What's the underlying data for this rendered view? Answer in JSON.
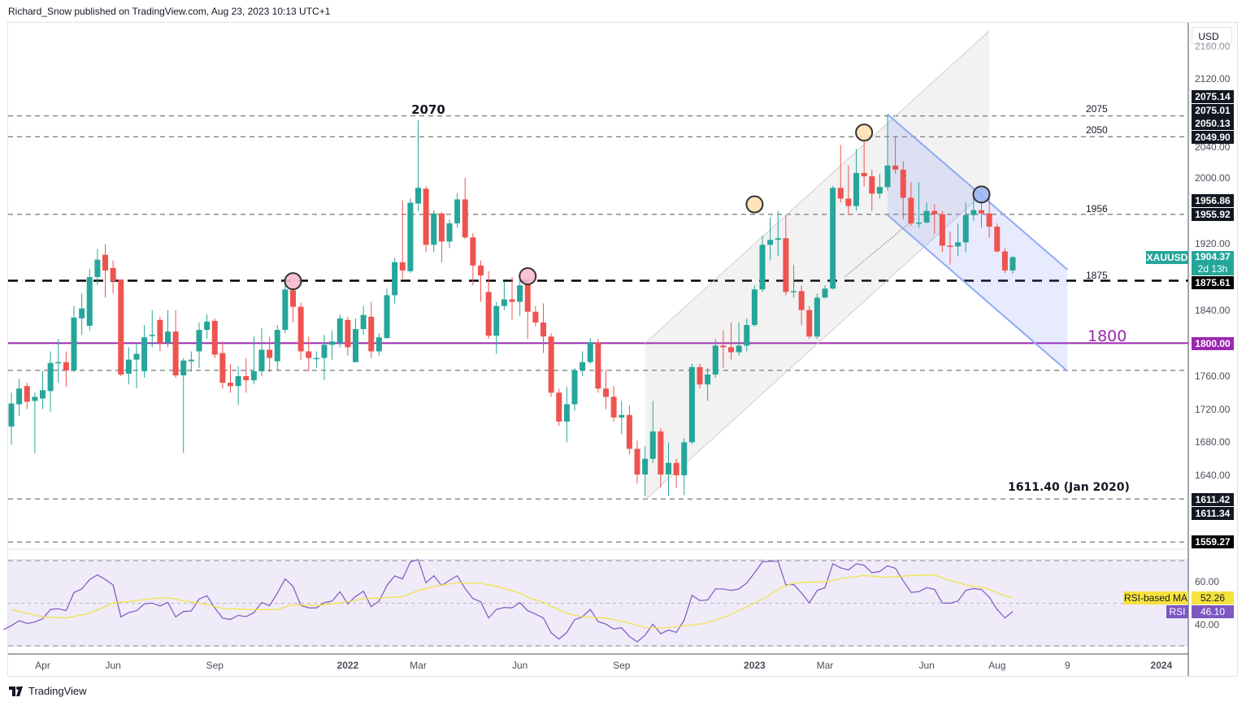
{
  "header": {
    "text": "Richard_Snow published on TradingView.com, Aug 23, 2023 10:13 UTC+1"
  },
  "footer": {
    "logo_text": "TradingView"
  },
  "currency_button": "USD",
  "colors": {
    "up": "#26a69a",
    "down": "#ef5350",
    "purple": "#9c27b0",
    "rsi": "#7e57c2",
    "rsi_ma": "#f5e23d",
    "badge": "#131722"
  },
  "price_axis": {
    "ticks": [
      "2160.00",
      "2120.00",
      "2040.00",
      "2000.00",
      "1920.00",
      "1840.00",
      "1760.00",
      "1720.00",
      "1680.00",
      "1640.00"
    ]
  },
  "badges": {
    "b2075_14": "2075.14",
    "b2075_01": "2075.01",
    "b2050_13": "2050.13",
    "b2049_90": "2049.90",
    "b1956_86": "1956.86",
    "b1955_92": "1955.92",
    "symbol": "XAUUSD",
    "last_price": "1904.37",
    "countdown": "2d 13h",
    "b1875_61": "1875.61",
    "b1800": "1800.00",
    "b1611_42": "1611.42",
    "b1611_34": "1611.34",
    "b1559_27": "1559.27",
    "rsi_ma_label": "RSI-based MA",
    "rsi_ma_value": "52.26",
    "rsi_label": "RSI",
    "rsi_value": "46.10"
  },
  "annotations": {
    "peak": "2070",
    "l2075": "2075",
    "l2050": "2050",
    "l1956": "1956",
    "l1875": "1875",
    "l1800": "1800",
    "l1611": "1611.40 (Jan 2020)"
  },
  "rsi_axis": {
    "ticks": [
      "60.00",
      "40.00"
    ]
  },
  "time_axis": [
    {
      "label": "Apr",
      "week": 4
    },
    {
      "label": "Jun",
      "week": 13
    },
    {
      "label": "Sep",
      "week": 26
    },
    {
      "label": "2022",
      "week": 43,
      "bold": true
    },
    {
      "label": "Mar",
      "week": 52
    },
    {
      "label": "Jun",
      "week": 65
    },
    {
      "label": "Sep",
      "week": 78
    },
    {
      "label": "2023",
      "week": 95,
      "bold": true
    },
    {
      "label": "Mar",
      "week": 104
    },
    {
      "label": "Jun",
      "week": 117
    },
    {
      "label": "Aug",
      "week": 126
    },
    {
      "label": "9",
      "week": 135
    },
    {
      "label": "2024",
      "week": 147
    }
  ],
  "chart_data": {
    "type": "candlestick",
    "symbol": "XAUUSD",
    "interval": "1W",
    "ylim": [
      1540,
      2180
    ],
    "levels": [
      {
        "price": 2075.01,
        "style": "dashed"
      },
      {
        "price": 2049.9,
        "style": "dashed"
      },
      {
        "price": 1955.92,
        "style": "dashed"
      },
      {
        "price": 1875.61,
        "style": "thick-dashed"
      },
      {
        "price": 1800.0,
        "style": "solid-purple"
      },
      {
        "price": 1767,
        "style": "dashed"
      },
      {
        "price": 1611.42,
        "style": "dashed"
      },
      {
        "price": 1559.27,
        "style": "dashed"
      }
    ],
    "ohlc": [
      [
        1699,
        1740,
        1677,
        1727
      ],
      [
        1726,
        1757,
        1712,
        1745
      ],
      [
        1748,
        1752,
        1720,
        1729
      ],
      [
        1730,
        1740,
        1667,
        1735
      ],
      [
        1733,
        1766,
        1720,
        1743
      ],
      [
        1742,
        1790,
        1717,
        1776
      ],
      [
        1776,
        1805,
        1752,
        1777
      ],
      [
        1777,
        1790,
        1747,
        1767
      ],
      [
        1767,
        1845,
        1765,
        1831
      ],
      [
        1830,
        1860,
        1810,
        1842
      ],
      [
        1821,
        1890,
        1815,
        1880
      ],
      [
        1880,
        1914,
        1870,
        1901
      ],
      [
        1907,
        1920,
        1855,
        1888
      ],
      [
        1891,
        1900,
        1860,
        1875
      ],
      [
        1877,
        1877,
        1760,
        1762
      ],
      [
        1763,
        1795,
        1750,
        1780
      ],
      [
        1780,
        1800,
        1745,
        1787
      ],
      [
        1766,
        1822,
        1758,
        1807
      ],
      [
        1810,
        1840,
        1795,
        1810
      ],
      [
        1828,
        1832,
        1790,
        1800
      ],
      [
        1800,
        1840,
        1795,
        1814
      ],
      [
        1814,
        1840,
        1758,
        1761
      ],
      [
        1761,
        1782,
        1667,
        1779
      ],
      [
        1778,
        1790,
        1765,
        1780
      ],
      [
        1790,
        1825,
        1770,
        1816
      ],
      [
        1816,
        1835,
        1805,
        1826
      ],
      [
        1827,
        1830,
        1782,
        1786
      ],
      [
        1788,
        1802,
        1745,
        1752
      ],
      [
        1752,
        1775,
        1740,
        1748
      ],
      [
        1748,
        1772,
        1725,
        1760
      ],
      [
        1760,
        1782,
        1740,
        1755
      ],
      [
        1755,
        1808,
        1750,
        1766
      ],
      [
        1766,
        1818,
        1760,
        1792
      ],
      [
        1792,
        1808,
        1765,
        1782
      ],
      [
        1778,
        1822,
        1767,
        1816
      ],
      [
        1816,
        1870,
        1812,
        1865
      ],
      [
        1864,
        1877,
        1825,
        1844
      ],
      [
        1844,
        1849,
        1780,
        1790
      ],
      [
        1790,
        1808,
        1766,
        1782
      ],
      [
        1782,
        1790,
        1770,
        1782
      ],
      [
        1782,
        1810,
        1755,
        1798
      ],
      [
        1798,
        1815,
        1780,
        1802
      ],
      [
        1800,
        1835,
        1795,
        1830
      ],
      [
        1828,
        1832,
        1785,
        1795
      ],
      [
        1777,
        1830,
        1777,
        1817
      ],
      [
        1817,
        1845,
        1810,
        1834
      ],
      [
        1832,
        1850,
        1782,
        1790
      ],
      [
        1790,
        1812,
        1785,
        1807
      ],
      [
        1806,
        1866,
        1806,
        1858
      ],
      [
        1858,
        1903,
        1848,
        1898
      ],
      [
        1898,
        1973,
        1878,
        1888
      ],
      [
        1887,
        1975,
        1885,
        1970
      ],
      [
        1969,
        2070,
        1960,
        1988
      ],
      [
        1987,
        1990,
        1910,
        1919
      ],
      [
        1919,
        1961,
        1910,
        1957
      ],
      [
        1957,
        1959,
        1898,
        1923
      ],
      [
        1923,
        1950,
        1915,
        1945
      ],
      [
        1945,
        1982,
        1940,
        1974
      ],
      [
        1974,
        2000,
        1926,
        1928
      ],
      [
        1928,
        1933,
        1870,
        1894
      ],
      [
        1894,
        1900,
        1850,
        1882
      ],
      [
        1862,
        1887,
        1805,
        1809
      ],
      [
        1809,
        1850,
        1787,
        1845
      ],
      [
        1845,
        1875,
        1840,
        1853
      ],
      [
        1853,
        1880,
        1828,
        1850
      ],
      [
        1850,
        1877,
        1833,
        1870
      ],
      [
        1873,
        1880,
        1805,
        1838
      ],
      [
        1838,
        1845,
        1820,
        1825
      ],
      [
        1825,
        1848,
        1788,
        1808
      ],
      [
        1808,
        1812,
        1735,
        1740
      ],
      [
        1740,
        1745,
        1700,
        1705
      ],
      [
        1705,
        1747,
        1680,
        1726
      ],
      [
        1726,
        1770,
        1718,
        1767
      ],
      [
        1767,
        1790,
        1760,
        1777
      ],
      [
        1777,
        1806,
        1775,
        1801
      ],
      [
        1801,
        1805,
        1740,
        1745
      ],
      [
        1745,
        1768,
        1720,
        1735
      ],
      [
        1735,
        1748,
        1705,
        1710
      ],
      [
        1710,
        1730,
        1690,
        1713
      ],
      [
        1713,
        1725,
        1665,
        1672
      ],
      [
        1672,
        1682,
        1630,
        1641
      ],
      [
        1641,
        1675,
        1615,
        1660
      ],
      [
        1660,
        1730,
        1655,
        1693
      ],
      [
        1693,
        1697,
        1625,
        1641
      ],
      [
        1641,
        1680,
        1615,
        1655
      ],
      [
        1655,
        1660,
        1625,
        1640
      ],
      [
        1640,
        1685,
        1616,
        1680
      ],
      [
        1680,
        1775,
        1678,
        1771
      ],
      [
        1771,
        1775,
        1745,
        1750
      ],
      [
        1750,
        1770,
        1730,
        1762
      ],
      [
        1762,
        1805,
        1758,
        1797
      ],
      [
        1797,
        1815,
        1770,
        1795
      ],
      [
        1795,
        1825,
        1780,
        1789
      ],
      [
        1789,
        1825,
        1785,
        1797
      ],
      [
        1797,
        1830,
        1790,
        1822
      ],
      [
        1822,
        1870,
        1820,
        1865
      ],
      [
        1865,
        1930,
        1862,
        1919
      ],
      [
        1919,
        1952,
        1900,
        1925
      ],
      [
        1925,
        1960,
        1905,
        1927
      ],
      [
        1927,
        1955,
        1858,
        1862
      ],
      [
        1862,
        1895,
        1855,
        1863
      ],
      [
        1863,
        1870,
        1822,
        1840
      ],
      [
        1840,
        1845,
        1805,
        1808
      ],
      [
        1808,
        1860,
        1805,
        1855
      ],
      [
        1855,
        1870,
        1855,
        1866
      ],
      [
        1866,
        1990,
        1865,
        1988
      ],
      [
        1988,
        2040,
        1970,
        1975
      ],
      [
        1975,
        2015,
        1955,
        1966
      ],
      [
        1966,
        2035,
        1960,
        2006
      ],
      [
        2006,
        2050,
        1990,
        2002
      ],
      [
        2002,
        2010,
        1960,
        1981
      ],
      [
        1981,
        2005,
        1975,
        1989
      ],
      [
        1989,
        2077,
        1985,
        2015
      ],
      [
        2015,
        2050,
        2005,
        2010
      ],
      [
        2010,
        2020,
        1950,
        1976
      ],
      [
        1976,
        1995,
        1942,
        1945
      ],
      [
        1945,
        1995,
        1940,
        1946
      ],
      [
        1946,
        1970,
        1945,
        1960
      ],
      [
        1960,
        1968,
        1932,
        1956
      ],
      [
        1956,
        1960,
        1910,
        1918
      ],
      [
        1918,
        1935,
        1895,
        1917
      ],
      [
        1917,
        1945,
        1905,
        1922
      ],
      [
        1922,
        1970,
        1910,
        1955
      ],
      [
        1955,
        1985,
        1948,
        1961
      ],
      [
        1961,
        1987,
        1940,
        1957
      ],
      [
        1957,
        1975,
        1928,
        1941
      ],
      [
        1941,
        1945,
        1910,
        1911
      ],
      [
        1911,
        1915,
        1885,
        1888
      ],
      [
        1888,
        1906,
        1884,
        1904
      ]
    ],
    "rsi": {
      "ylim": [
        30,
        70
      ],
      "bands": [
        70,
        50,
        30
      ],
      "values": [
        37.6,
        39.5,
        41.8,
        40.5,
        41.2,
        42.7,
        47.1,
        47.4,
        46.5,
        55,
        56.7,
        61.1,
        63.3,
        61.1,
        58.6,
        43.6,
        45.6,
        46.5,
        49.7,
        50.1,
        48.7,
        50.4,
        43.6,
        46.1,
        46.4,
        52,
        53.5,
        47.8,
        43,
        42.4,
        44.3,
        43.7,
        45.6,
        50.4,
        48.8,
        54.8,
        61.4,
        57.9,
        49,
        47.8,
        47.8,
        50.3,
        51,
        55.4,
        49.7,
        53.2,
        55.6,
        48.4,
        51,
        58.3,
        62.8,
        61.4,
        69.4,
        70.4,
        59.6,
        62.9,
        58.3,
        60.7,
        62.9,
        56.9,
        52.2,
        50.7,
        43.1,
        47.1,
        48,
        47.8,
        50.3,
        46.5,
        44.9,
        43.1,
        36.1,
        33.2,
        36.3,
        42.3,
        43.6,
        47.1,
        41.4,
        40.2,
        37.9,
        38.5,
        34.4,
        31.9,
        35,
        40.2,
        35.7,
        37.4,
        36.3,
        42,
        53.7,
        51.3,
        51.5,
        56.7,
        56.7,
        56,
        56.7,
        59.5,
        64.3,
        69.4,
        69.7,
        69.7,
        58.6,
        58.8,
        54.8,
        50.1,
        56,
        57.3,
        68.5,
        66.6,
        65.6,
        68.5,
        67.8,
        64.3,
        64.9,
        67.5,
        66.4,
        60.5,
        55.1,
        55.4,
        57.3,
        56.5,
        50.1,
        50,
        51,
        56,
        56.9,
        56.4,
        52.9,
        47.1,
        43.1,
        46.1
      ],
      "ma": [
        [
          0,
          47.1
        ],
        [
          1,
          46.1
        ],
        [
          4,
          43.6
        ],
        [
          7,
          43.1
        ],
        [
          10,
          45.2
        ],
        [
          13,
          50.1
        ],
        [
          15.5,
          51
        ],
        [
          18,
          52.2
        ],
        [
          20,
          52.6
        ],
        [
          22,
          51.2
        ],
        [
          25,
          49.4
        ],
        [
          27,
          47.5
        ],
        [
          31,
          47
        ],
        [
          34,
          47.1
        ],
        [
          36,
          49.3
        ],
        [
          39,
          48.8
        ],
        [
          43,
          50.7
        ],
        [
          45,
          52.2
        ],
        [
          50,
          53
        ],
        [
          52,
          56
        ],
        [
          54.5,
          58.2
        ],
        [
          57,
          59.6
        ],
        [
          60,
          59.4
        ],
        [
          62,
          57.9
        ],
        [
          65,
          54.8
        ],
        [
          66,
          52.9
        ],
        [
          68,
          50.3
        ],
        [
          71,
          45.2
        ],
        [
          73,
          43.6
        ],
        [
          76,
          43
        ],
        [
          78.5,
          41.2
        ],
        [
          81,
          38.6
        ],
        [
          83,
          38.4
        ],
        [
          86,
          39.3
        ],
        [
          88.6,
          40.5
        ],
        [
          91.5,
          44
        ],
        [
          94,
          48.2
        ],
        [
          96.6,
          53.1
        ],
        [
          98.4,
          57.3
        ],
        [
          100,
          59.5
        ],
        [
          104,
          60.1
        ],
        [
          106,
          61.5
        ],
        [
          109,
          63
        ],
        [
          112,
          62.1
        ],
        [
          115,
          63
        ],
        [
          118,
          63.3
        ],
        [
          119.6,
          61.1
        ],
        [
          122,
          58.6
        ],
        [
          124.7,
          56.9
        ],
        [
          126.8,
          53.7
        ],
        [
          128,
          52.5
        ]
      ]
    },
    "drawings": {
      "ascending_channel": {
        "from_week": 81,
        "to_week": 125,
        "upper": [
          1800,
          2178
        ],
        "lower": [
          1610,
          1988
        ]
      },
      "descending_channel": {
        "from_week": 112,
        "to_week": 135,
        "upper": [
          2077,
          1889
        ],
        "lower": [
          1955,
          1766
        ]
      },
      "trend_dotted": {
        "from": [
          106.5,
          1880
        ],
        "to": [
          115.5,
          1951
        ]
      },
      "markers": [
        {
          "week": 36,
          "price": 1875,
          "color": "#f8bbd0"
        },
        {
          "week": 66,
          "price": 1881,
          "color": "#f8bbd0"
        },
        {
          "week": 95,
          "price": 1968,
          "color": "#ffe0b2"
        },
        {
          "week": 109,
          "price": 2055,
          "color": "#ffe0b2"
        },
        {
          "week": 124,
          "price": 1980,
          "color": "#9fb8f5"
        }
      ]
    }
  }
}
